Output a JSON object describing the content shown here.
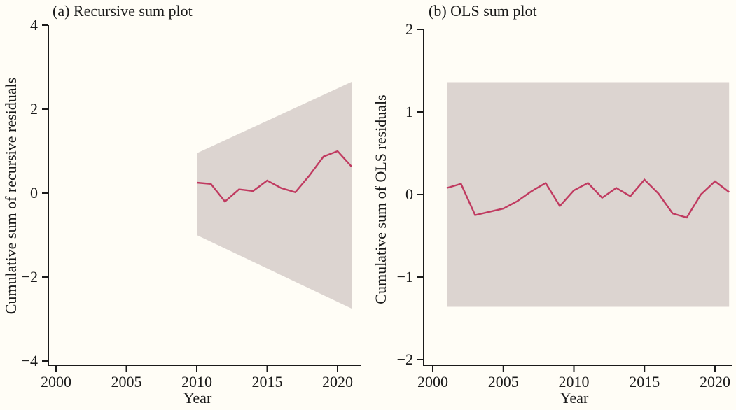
{
  "figure": {
    "background_color": "#fffdf6",
    "axis_color": "#1a1a1a",
    "band_color": "#dcd4d0",
    "line_color": "#c03a60"
  },
  "chart_data": [
    {
      "type": "line",
      "panel": "a",
      "title": "(a) Recursive sum plot",
      "xlabel": "Year",
      "ylabel": "Cumulative sum of recursive residuals",
      "xlim": [
        1999.5,
        2021.6
      ],
      "ylim": [
        -4,
        4
      ],
      "xticks": [
        2000,
        2005,
        2010,
        2015,
        2020
      ],
      "yticks": [
        4,
        2,
        0,
        -2,
        -4
      ],
      "grid": false,
      "legend": "none",
      "band": {
        "name": "significance-band",
        "color": "#dcd4d0",
        "x": [
          2010,
          2021
        ],
        "upper": [
          0.95,
          2.65
        ],
        "lower": [
          -1.0,
          -2.75
        ]
      },
      "series": [
        {
          "name": "cusum-recursive-residuals",
          "color": "#c03a60",
          "x": [
            2010,
            2011,
            2012,
            2013,
            2014,
            2015,
            2016,
            2017,
            2018,
            2019,
            2020,
            2021
          ],
          "y": [
            0.25,
            0.22,
            -0.2,
            0.09,
            0.05,
            0.3,
            0.12,
            0.02,
            0.42,
            0.87,
            1.0,
            0.63
          ]
        }
      ]
    },
    {
      "type": "line",
      "panel": "b",
      "title": "(b) OLS sum plot",
      "xlabel": "Year",
      "ylabel": "Cumulative sum of OLS residuals",
      "xlim": [
        1999.4,
        2021.3
      ],
      "ylim": [
        -2,
        2
      ],
      "xticks": [
        2000,
        2005,
        2010,
        2015,
        2020
      ],
      "yticks": [
        2,
        1,
        0,
        -1,
        -2
      ],
      "grid": false,
      "legend": "none",
      "band": {
        "name": "significance-band",
        "color": "#dcd4d0",
        "x": [
          2001,
          2021
        ],
        "upper": [
          1.36,
          1.36
        ],
        "lower": [
          -1.36,
          -1.36
        ]
      },
      "series": [
        {
          "name": "cusum-ols-residuals",
          "color": "#c03a60",
          "x": [
            2001,
            2002,
            2003,
            2004,
            2005,
            2006,
            2007,
            2008,
            2009,
            2010,
            2011,
            2012,
            2013,
            2014,
            2015,
            2016,
            2017,
            2018,
            2019,
            2020,
            2021
          ],
          "y": [
            0.08,
            0.13,
            -0.25,
            -0.21,
            -0.17,
            -0.08,
            0.04,
            0.14,
            -0.14,
            0.05,
            0.14,
            -0.04,
            0.08,
            -0.02,
            0.18,
            0.01,
            -0.23,
            -0.28,
            0.0,
            0.16,
            0.03
          ]
        }
      ]
    }
  ]
}
